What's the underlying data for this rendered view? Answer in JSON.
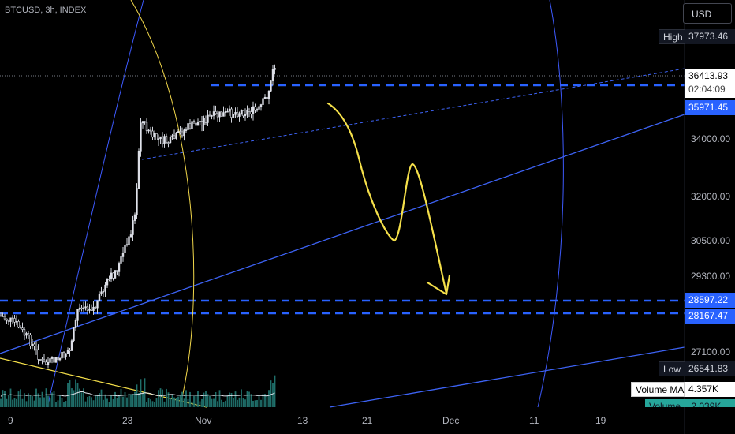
{
  "symbol": "BTCUSD, 3h, INDEX",
  "currency_button": "USD",
  "high": {
    "label": "High",
    "value": "37973.46"
  },
  "low": {
    "label": "Low",
    "value": "26541.83"
  },
  "last_price": {
    "value": "36413.93",
    "countdown": "02:04:09"
  },
  "levels": {
    "top": "35971.45",
    "upper": "28597.22",
    "lower": "28167.47"
  },
  "volume_ma": {
    "label": "Volume MA",
    "value": "4.357K"
  },
  "volume": {
    "label": "Volume",
    "value": "2.039K"
  },
  "y_axis_labels": [
    "34000.00",
    "32000.00",
    "30500.00",
    "29300.00",
    "27100.00"
  ],
  "x_axis_labels": [
    "9",
    "23",
    "Nov",
    "13",
    "21",
    "Dec",
    "11",
    "19"
  ],
  "colors": {
    "background": "#000000",
    "accent": "#2962ff",
    "drawing_yellow": "#f5e04a",
    "arc_blue": "#3d5afe",
    "candle": "#e0e3eb",
    "volume": "#26a69a"
  }
}
